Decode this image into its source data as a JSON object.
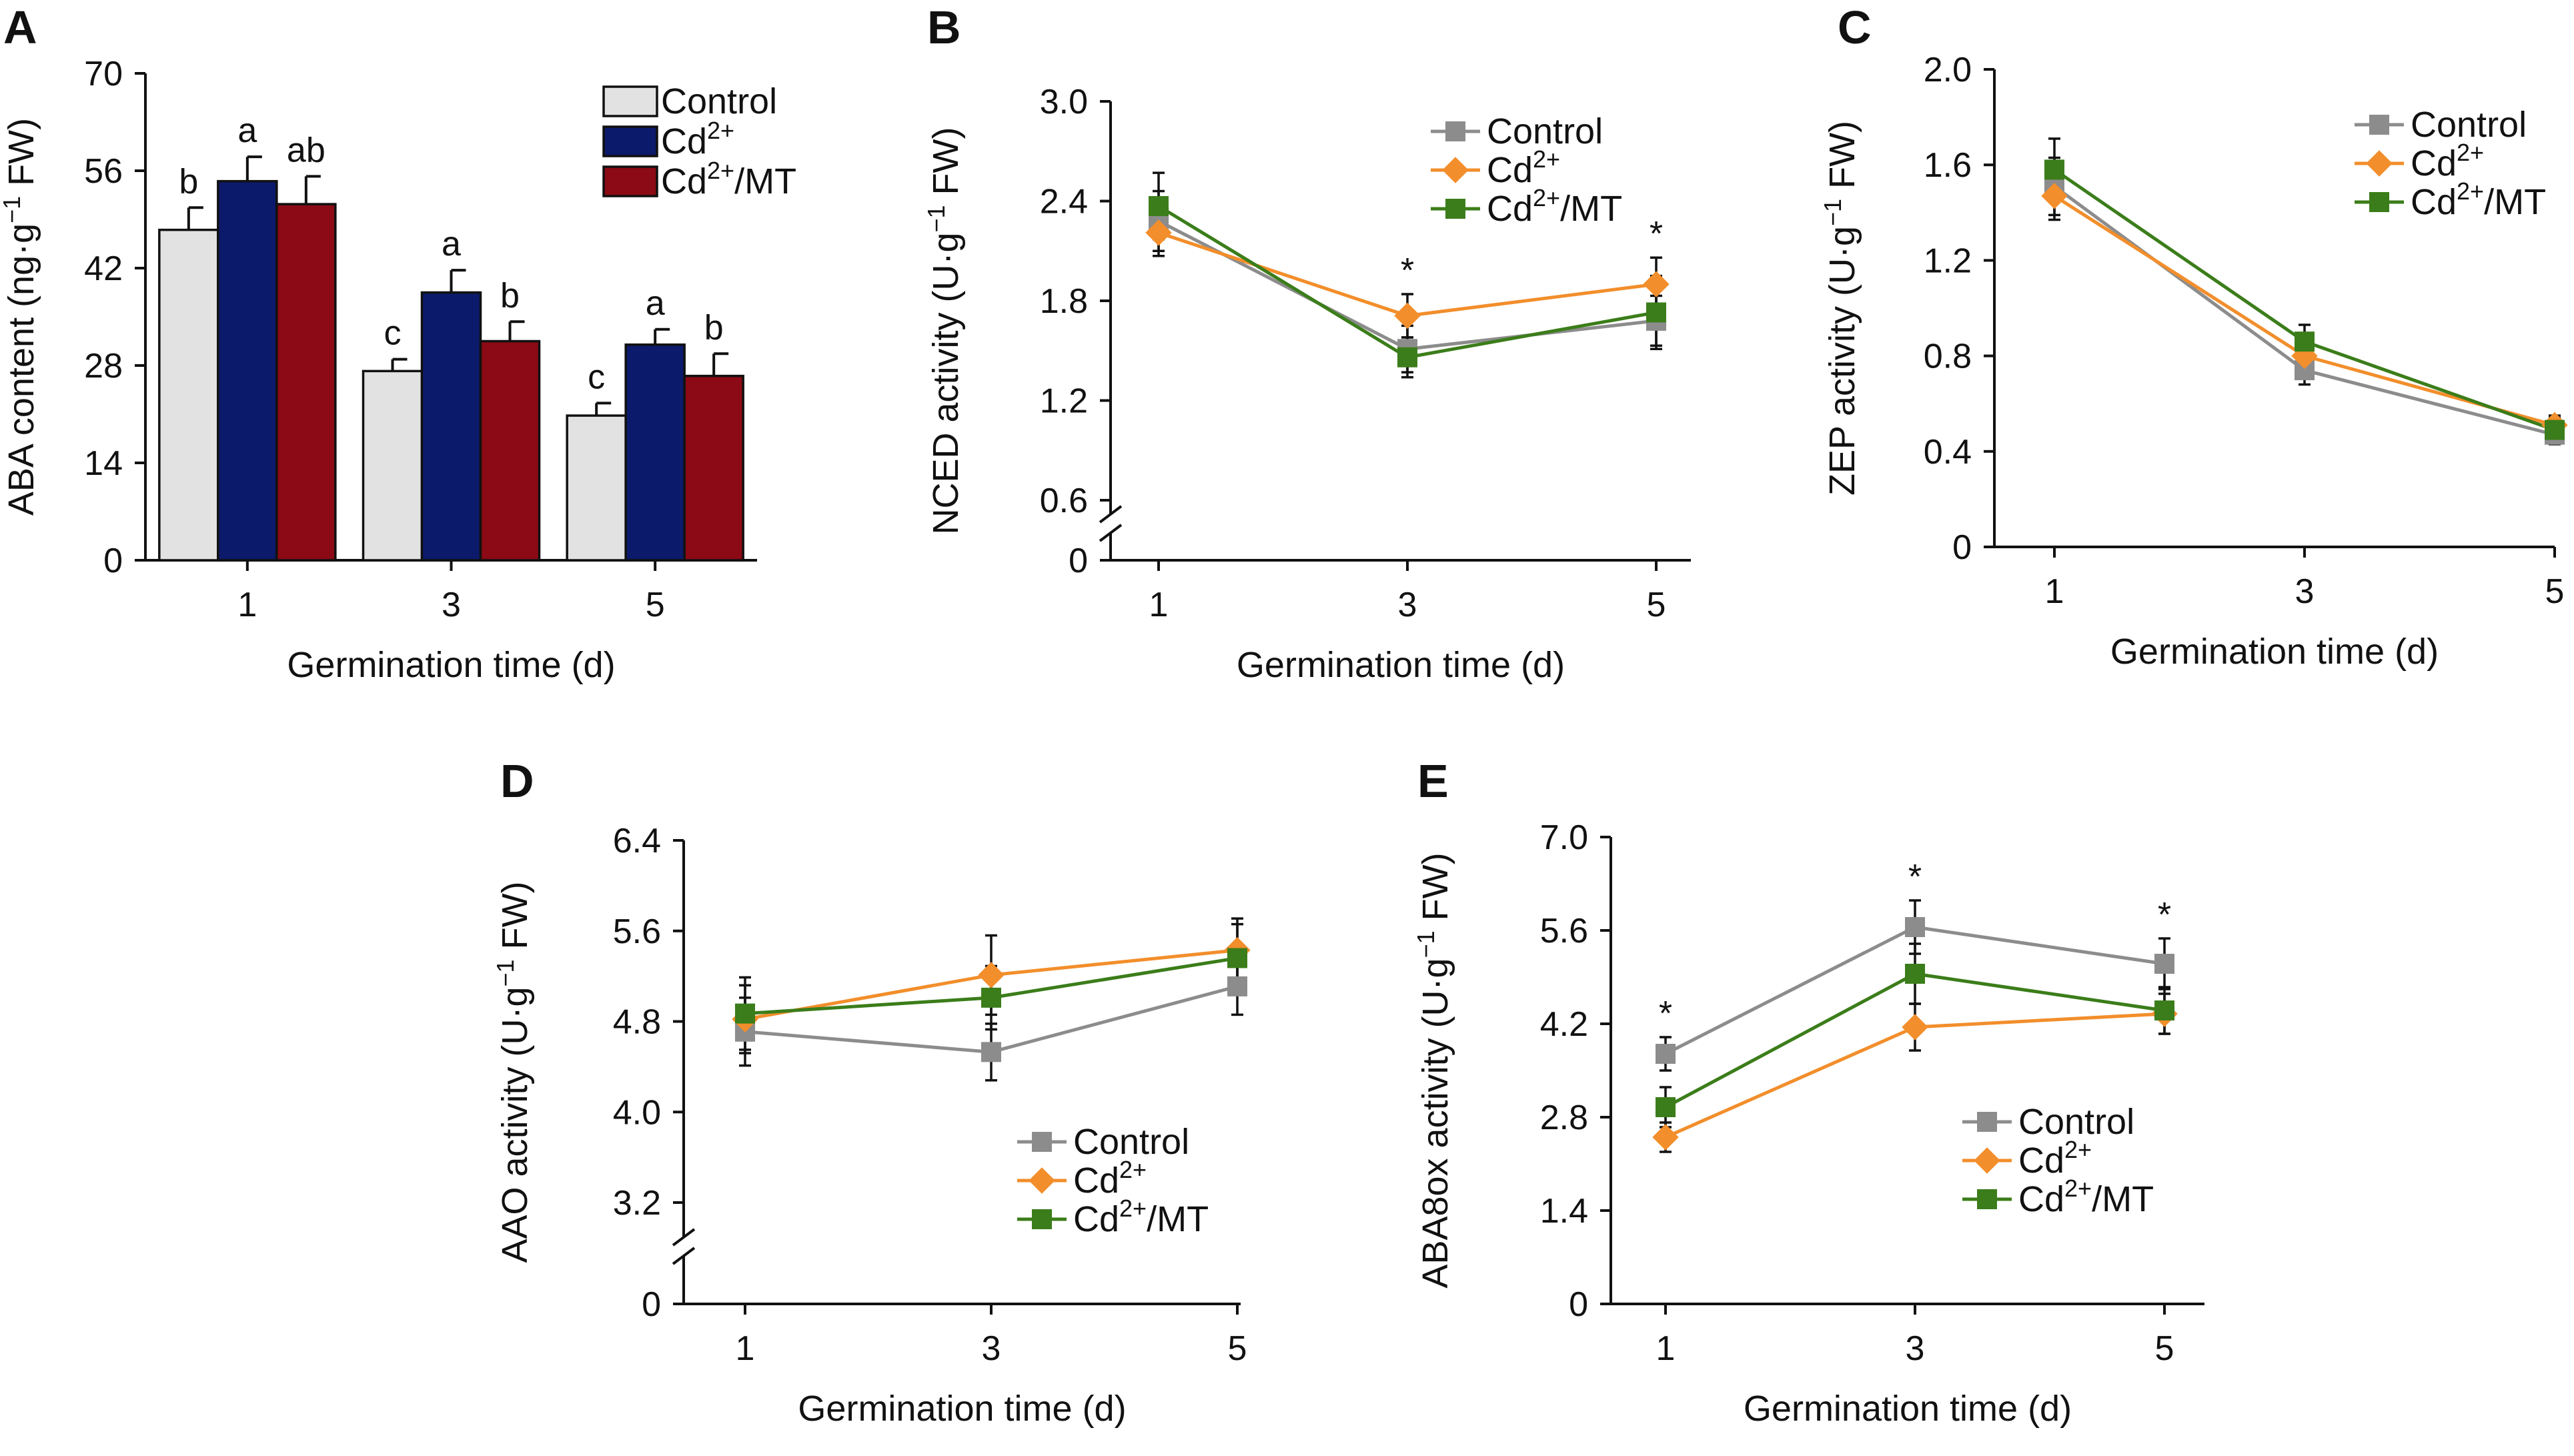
{
  "chart_data": [
    {
      "panel": "A",
      "type": "bar",
      "categories": [
        "1",
        "3",
        "5"
      ],
      "series": [
        {
          "name": "Control",
          "values": [
            47.5,
            27.2,
            20.8
          ],
          "errors": [
            3.2,
            1.7,
            1.8
          ],
          "letters": [
            "b",
            "c",
            "c"
          ]
        },
        {
          "name": "Cd2+",
          "values": [
            54.5,
            38.5,
            31.0
          ],
          "errors": [
            3.5,
            3.2,
            2.2
          ],
          "letters": [
            "a",
            "a",
            "a"
          ]
        },
        {
          "name": "Cd2+/MT",
          "values": [
            51.2,
            31.5,
            26.5
          ],
          "errors": [
            4.0,
            2.8,
            3.2
          ],
          "letters": [
            "ab",
            "b",
            "b"
          ]
        }
      ],
      "xlabel": "Germination time (d)",
      "ylabel": "ABA content (ng·g⁻¹ FW)",
      "ylim": [
        0,
        70
      ],
      "yticks": [
        "0",
        "14",
        "28",
        "42",
        "56",
        "70"
      ],
      "legend": "top-right"
    },
    {
      "panel": "B",
      "type": "line",
      "x": [
        "1",
        "3",
        "5"
      ],
      "series": [
        {
          "name": "Control",
          "values": [
            2.28,
            1.51,
            1.68
          ],
          "errors": [
            0.18,
            0.14,
            0.15
          ]
        },
        {
          "name": "Cd2+",
          "values": [
            2.21,
            1.71,
            1.9
          ],
          "errors": [
            0.14,
            0.13,
            0.16
          ]
        },
        {
          "name": "Cd2+/MT",
          "values": [
            2.37,
            1.46,
            1.73
          ],
          "errors": [
            0.2,
            0.12,
            0.22
          ]
        }
      ],
      "significance": [
        "",
        "*",
        "*"
      ],
      "xlabel": "Germination time (d)",
      "ylabel": "NCED activity (U·g⁻¹ FW)",
      "ylim": [
        0,
        3.0
      ],
      "axis_break": true,
      "yticks": [
        "0",
        "0.6",
        "1.2",
        "1.8",
        "2.4",
        "3.0"
      ],
      "legend": "top-right"
    },
    {
      "panel": "C",
      "type": "line",
      "x": [
        "1",
        "3",
        "5"
      ],
      "series": [
        {
          "name": "Control",
          "values": [
            1.51,
            0.74,
            0.47
          ],
          "errors": [
            0.12,
            0.06,
            0.04
          ]
        },
        {
          "name": "Cd2+",
          "values": [
            1.47,
            0.8,
            0.51
          ],
          "errors": [
            0.1,
            0.06,
            0.04
          ]
        },
        {
          "name": "Cd2+/MT",
          "values": [
            1.58,
            0.86,
            0.49
          ],
          "errors": [
            0.13,
            0.07,
            0.05
          ]
        }
      ],
      "xlabel": "Germination time (d)",
      "ylabel": "ZEP activity (U·g⁻¹ FW)",
      "ylim": [
        0,
        2.0
      ],
      "yticks": [
        "0",
        "0.4",
        "0.8",
        "1.2",
        "1.6",
        "2.0"
      ],
      "legend": "top-right"
    },
    {
      "panel": "D",
      "type": "line",
      "x": [
        "1",
        "3",
        "5"
      ],
      "series": [
        {
          "name": "Control",
          "values": [
            4.71,
            4.53,
            5.11
          ],
          "errors": [
            0.3,
            0.25,
            0.25
          ]
        },
        {
          "name": "Cd2+",
          "values": [
            4.82,
            5.21,
            5.43
          ],
          "errors": [
            0.3,
            0.35,
            0.28
          ]
        },
        {
          "name": "Cd2+/MT",
          "values": [
            4.87,
            5.01,
            5.36
          ],
          "errors": [
            0.32,
            0.28,
            0.3
          ]
        }
      ],
      "xlabel": "Germination time (d)",
      "ylabel": "AAO activity (U·g⁻¹ FW)",
      "ylim": [
        0,
        6.4
      ],
      "axis_break": true,
      "yticks": [
        "0",
        "3.2",
        "4.0",
        "4.8",
        "5.6",
        "6.4"
      ],
      "legend": "bottom-right"
    },
    {
      "panel": "E",
      "type": "line",
      "x": [
        "1",
        "3",
        "5"
      ],
      "series": [
        {
          "name": "Control",
          "values": [
            3.75,
            5.65,
            5.1
          ],
          "errors": [
            0.25,
            0.4,
            0.38
          ]
        },
        {
          "name": "Cd2+",
          "values": [
            2.5,
            4.15,
            4.35
          ],
          "errors": [
            0.22,
            0.35,
            0.3
          ]
        },
        {
          "name": "Cd2+/MT",
          "values": [
            2.95,
            4.95,
            4.4
          ],
          "errors": [
            0.3,
            0.45,
            0.35
          ]
        }
      ],
      "significance": [
        "*",
        "*",
        "*"
      ],
      "xlabel": "Germination time (d)",
      "ylabel": "ABA8ox activity (U·g⁻¹ FW)",
      "ylim": [
        0,
        7.0
      ],
      "yticks": [
        "0",
        "1.4",
        "2.8",
        "4.2",
        "5.6",
        "7.0"
      ],
      "legend": "bottom-right"
    }
  ],
  "colors": {
    "bar_control": "#e2e2e2",
    "bar_cd": "#0c1a6b",
    "bar_cdmt": "#8b0a15",
    "line_control": "#8c8c8c",
    "line_cd": "#f28e2b",
    "line_cdmt": "#3b7d1a"
  }
}
